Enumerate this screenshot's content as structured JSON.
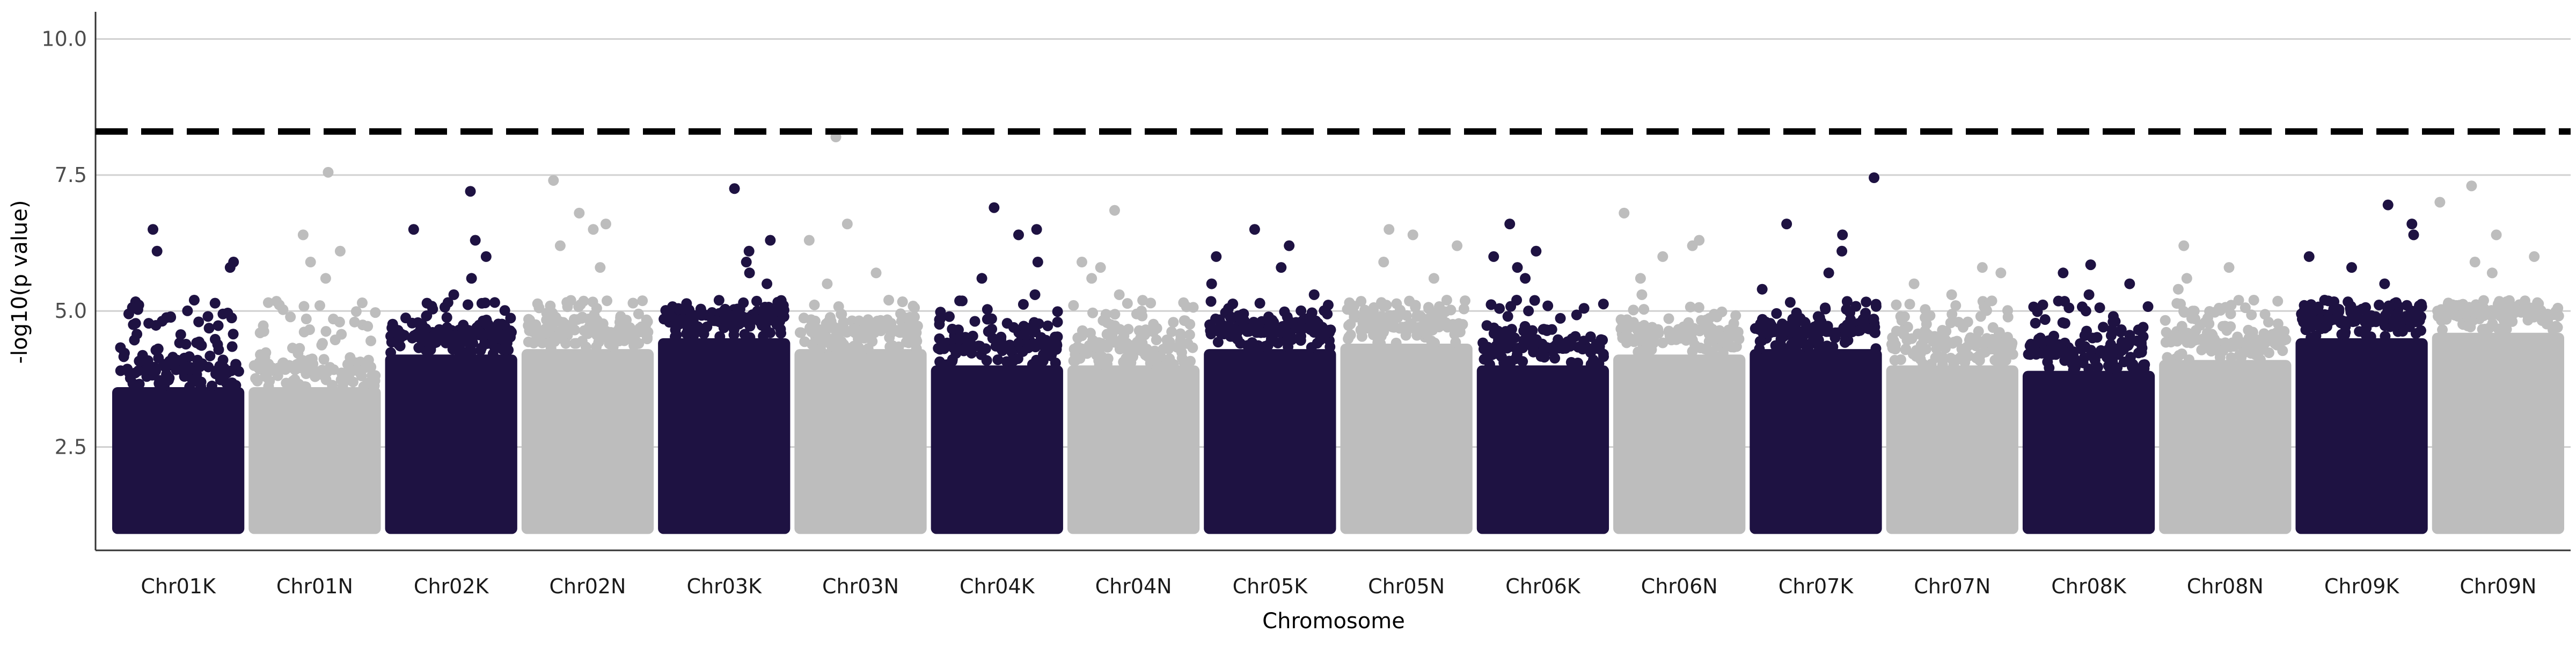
{
  "chart_data": {
    "type": "scatter",
    "subtype": "manhattan",
    "title": "",
    "xlabel": "Chromosome",
    "ylabel": "-log10(p value)",
    "ylim": [
      0.6,
      10.5
    ],
    "yticks": [
      2.5,
      5.0,
      7.5,
      10.0
    ],
    "ytick_labels": [
      "2.5",
      "5.0",
      "7.5",
      "10.0"
    ],
    "grid": "horizontal major gridlines",
    "legend": "none",
    "threshold": {
      "y": 8.3,
      "style": "dashed",
      "color": "#000000"
    },
    "point_colors": [
      "#1e1242",
      "#bdbdbd"
    ],
    "point_floor": 1.0,
    "chromosomes": [
      {
        "label": "Chr01K",
        "color_index": 0,
        "max": 6.5,
        "dense_top": 3.6,
        "peaks": [
          6.5,
          6.1,
          5.8,
          5.9,
          5.2,
          4.9
        ]
      },
      {
        "label": "Chr01N",
        "color_index": 1,
        "max": 7.55,
        "dense_top": 3.6,
        "peaks": [
          7.55,
          6.4,
          6.1,
          5.9,
          5.6,
          5.1
        ]
      },
      {
        "label": "Chr02K",
        "color_index": 0,
        "max": 7.2,
        "dense_top": 4.2,
        "peaks": [
          7.2,
          6.5,
          6.3,
          6.0,
          5.6,
          5.3
        ]
      },
      {
        "label": "Chr02N",
        "color_index": 1,
        "max": 7.4,
        "dense_top": 4.3,
        "peaks": [
          7.4,
          6.8,
          6.6,
          6.5,
          6.2,
          5.8
        ]
      },
      {
        "label": "Chr03K",
        "color_index": 0,
        "max": 7.25,
        "dense_top": 4.5,
        "peaks": [
          7.25,
          6.3,
          6.1,
          5.9,
          5.7,
          5.5
        ]
      },
      {
        "label": "Chr03N",
        "color_index": 1,
        "max": 8.2,
        "dense_top": 4.3,
        "peaks": [
          8.2,
          6.6,
          6.3,
          5.7,
          5.5,
          5.2
        ]
      },
      {
        "label": "Chr04K",
        "color_index": 0,
        "max": 6.9,
        "dense_top": 4.0,
        "peaks": [
          6.9,
          6.5,
          6.4,
          5.9,
          5.6,
          5.3
        ]
      },
      {
        "label": "Chr04N",
        "color_index": 1,
        "max": 6.85,
        "dense_top": 4.0,
        "peaks": [
          6.85,
          5.9,
          5.8,
          5.6,
          5.3,
          5.0
        ]
      },
      {
        "label": "Chr05K",
        "color_index": 0,
        "max": 6.5,
        "dense_top": 4.3,
        "peaks": [
          6.5,
          6.2,
          6.0,
          5.8,
          5.5,
          5.3
        ]
      },
      {
        "label": "Chr05N",
        "color_index": 1,
        "max": 6.5,
        "dense_top": 4.4,
        "peaks": [
          6.5,
          6.4,
          6.2,
          5.9,
          5.6,
          5.2
        ]
      },
      {
        "label": "Chr06K",
        "color_index": 0,
        "max": 6.6,
        "dense_top": 4.0,
        "peaks": [
          6.6,
          6.1,
          6.0,
          5.8,
          5.6,
          5.2
        ]
      },
      {
        "label": "Chr06N",
        "color_index": 1,
        "max": 6.8,
        "dense_top": 4.2,
        "peaks": [
          6.8,
          6.3,
          6.2,
          6.0,
          5.6,
          5.3
        ]
      },
      {
        "label": "Chr07K",
        "color_index": 0,
        "max": 7.45,
        "dense_top": 4.3,
        "peaks": [
          7.45,
          6.6,
          6.4,
          6.1,
          5.7,
          5.4
        ]
      },
      {
        "label": "Chr07N",
        "color_index": 1,
        "max": 5.8,
        "dense_top": 4.0,
        "peaks": [
          5.8,
          5.7,
          5.5,
          5.3,
          5.1,
          4.9
        ]
      },
      {
        "label": "Chr08K",
        "color_index": 0,
        "max": 5.85,
        "dense_top": 3.9,
        "peaks": [
          5.85,
          5.7,
          5.5,
          5.3,
          5.0,
          4.8
        ]
      },
      {
        "label": "Chr08N",
        "color_index": 1,
        "max": 6.2,
        "dense_top": 4.1,
        "peaks": [
          6.2,
          5.8,
          5.6,
          5.4,
          5.2,
          5.0
        ]
      },
      {
        "label": "Chr09K",
        "color_index": 0,
        "max": 6.95,
        "dense_top": 4.5,
        "peaks": [
          6.95,
          6.6,
          6.4,
          6.0,
          5.8,
          5.5
        ]
      },
      {
        "label": "Chr09N",
        "color_index": 1,
        "max": 7.3,
        "dense_top": 4.6,
        "peaks": [
          7.3,
          7.0,
          6.4,
          6.0,
          5.9,
          5.7
        ]
      }
    ]
  }
}
